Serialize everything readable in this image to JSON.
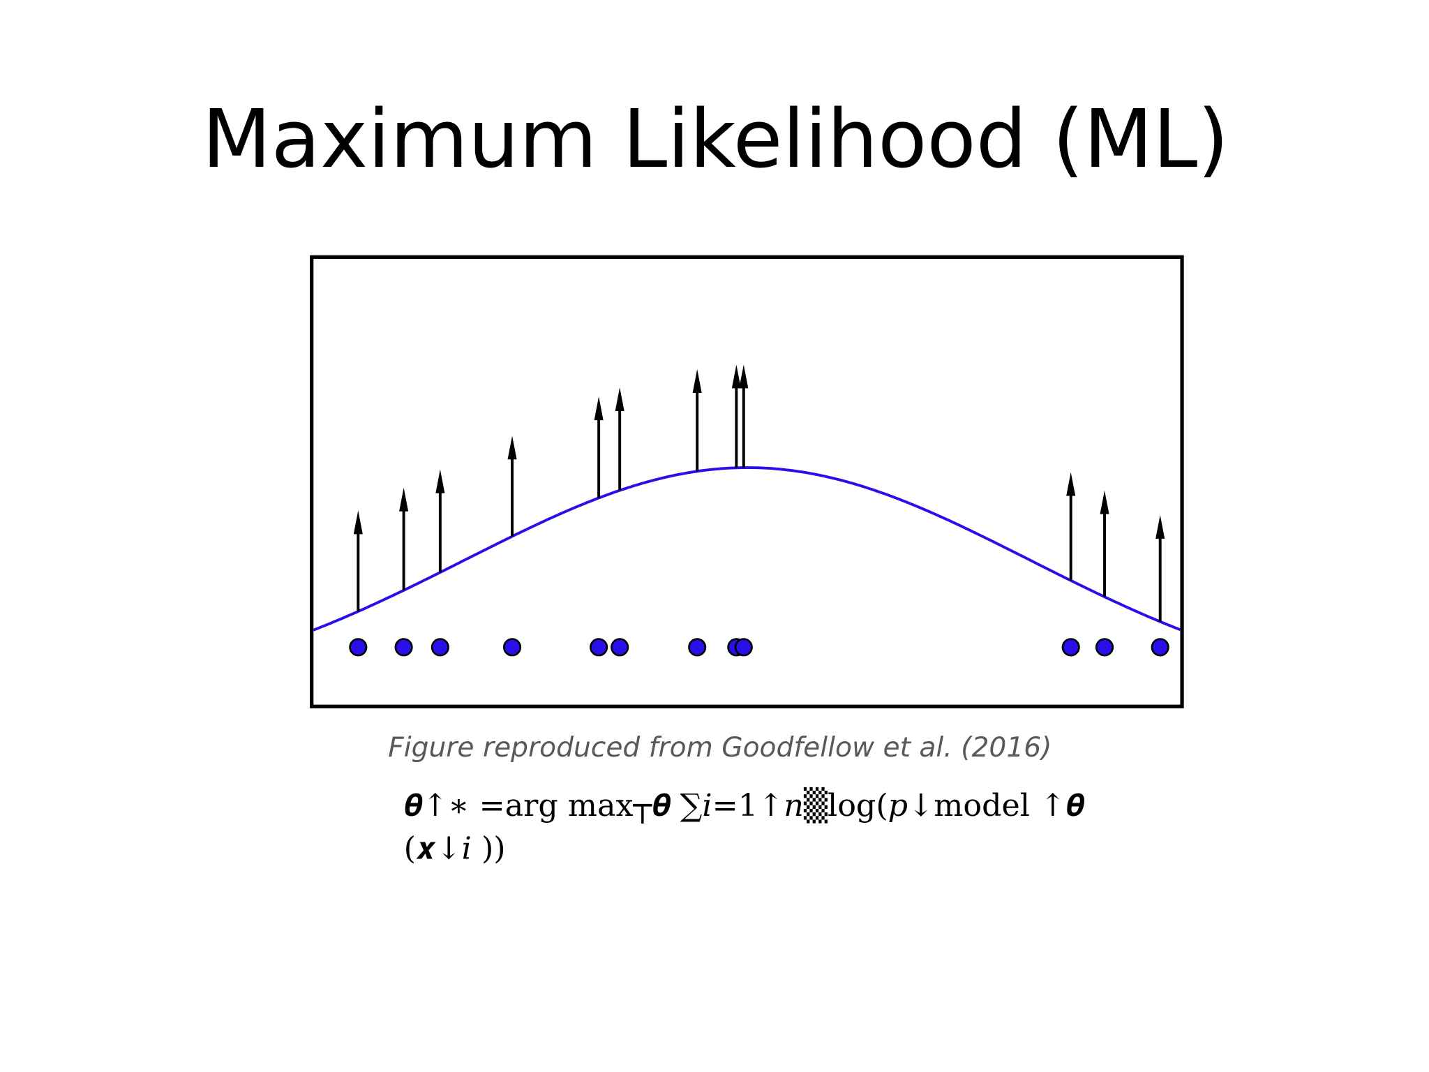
{
  "slide": {
    "title": "Maximum Likelihood (ML)",
    "caption": "Figure reproduced from Goodfellow et al. (2016)",
    "formula_lines": [
      "𝜽↑∗ =arg max┬𝜽 ∑𝑖=1↑𝑛▒log(𝑝↓model ↑𝜽",
      "(𝒙↓𝑖 ))"
    ]
  }
}
